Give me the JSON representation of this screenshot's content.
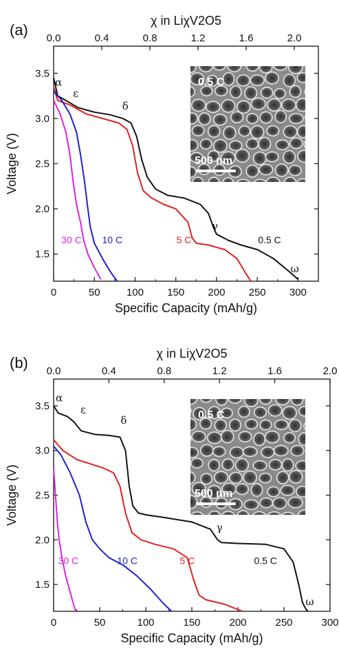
{
  "chart_data": [
    {
      "type": "line",
      "panel_label": "(a)",
      "xlabel": "Specific Capacity (mAh/g)",
      "ylabel": "Voltage (V)",
      "top_xlabel": "χ in LiχV2O5",
      "xlim": [
        0,
        325
      ],
      "ylim": [
        1.2,
        3.8
      ],
      "top_xlim": [
        0,
        2.2
      ],
      "x_ticks": [
        "0",
        "50",
        "100",
        "150",
        "200",
        "250",
        "300"
      ],
      "x_tick_values": [
        0,
        50,
        100,
        150,
        200,
        250,
        300
      ],
      "y_ticks": [
        "1.5",
        "2.0",
        "2.5",
        "3.0",
        "3.5"
      ],
      "y_tick_values": [
        1.5,
        2.0,
        2.5,
        3.0,
        3.5
      ],
      "top_ticks": [
        "0.0",
        "0.4",
        "0.8",
        "1.2",
        "1.6",
        "2.0"
      ],
      "top_tick_values": [
        0.0,
        0.4,
        0.8,
        1.2,
        1.6,
        2.0
      ],
      "series": [
        {
          "name": "0.5 C",
          "color": "#111111",
          "x": [
            0,
            5,
            15,
            30,
            50,
            70,
            85,
            95,
            102,
            108,
            115,
            125,
            140,
            160,
            180,
            190,
            196,
            200,
            215,
            230,
            250,
            270,
            290,
            300
          ],
          "y": [
            3.45,
            3.25,
            3.2,
            3.12,
            3.07,
            3.04,
            3.0,
            2.95,
            2.8,
            2.55,
            2.35,
            2.22,
            2.15,
            2.12,
            2.05,
            1.95,
            1.8,
            1.72,
            1.65,
            1.6,
            1.55,
            1.45,
            1.3,
            1.22
          ]
        },
        {
          "name": "5 C",
          "color": "#e02020",
          "x": [
            0,
            5,
            20,
            40,
            60,
            80,
            90,
            97,
            103,
            110,
            120,
            135,
            150,
            165,
            170,
            175,
            190,
            210,
            225,
            235,
            242
          ],
          "y": [
            3.35,
            3.2,
            3.15,
            3.05,
            3.0,
            2.95,
            2.88,
            2.7,
            2.4,
            2.2,
            2.12,
            2.05,
            2.0,
            1.85,
            1.68,
            1.62,
            1.6,
            1.55,
            1.45,
            1.3,
            1.2
          ]
        },
        {
          "name": "10 C",
          "color": "#2020d0",
          "x": [
            0,
            10,
            20,
            28,
            33,
            38,
            42,
            45,
            50,
            60,
            70,
            78
          ],
          "y": [
            3.3,
            3.2,
            3.05,
            2.85,
            2.6,
            2.3,
            2.0,
            1.8,
            1.62,
            1.45,
            1.3,
            1.2
          ]
        },
        {
          "name": "30 C",
          "color": "#e020e0",
          "x": [
            0,
            8,
            15,
            20,
            24,
            28,
            33,
            37,
            42,
            50,
            58
          ],
          "y": [
            3.2,
            3.05,
            2.85,
            2.6,
            2.3,
            2.05,
            1.85,
            1.65,
            1.5,
            1.35,
            1.22
          ]
        }
      ],
      "curve_labels": [
        {
          "text": "30 C",
          "color": "#e020e0",
          "x": 22,
          "y": 1.62
        },
        {
          "text": "10 C",
          "color": "#2020d0",
          "x": 72,
          "y": 1.62
        },
        {
          "text": "5 C",
          "color": "#e02020",
          "x": 160,
          "y": 1.62
        },
        {
          "text": "0.5 C",
          "color": "#111111",
          "x": 265,
          "y": 1.62
        }
      ],
      "greek_labels": [
        {
          "text": "α",
          "x": 6,
          "y": 3.36
        },
        {
          "text": "ε",
          "x": 27,
          "y": 3.24
        },
        {
          "text": "δ",
          "x": 88,
          "y": 3.1
        },
        {
          "text": "γ",
          "x": 198,
          "y": 1.77
        },
        {
          "text": "ω",
          "x": 296,
          "y": 1.3
        }
      ],
      "inset": {
        "rate_label": "0.5 C",
        "scale_label": "500 nm"
      }
    },
    {
      "type": "line",
      "panel_label": "(b)",
      "xlabel": "Specific Capacity (mAh/g)",
      "ylabel": "Voltage (V)",
      "top_xlabel": "χ in LiχV2O5",
      "xlim": [
        0,
        300
      ],
      "ylim": [
        1.2,
        3.8
      ],
      "top_xlim": [
        0,
        2.0
      ],
      "x_ticks": [
        "0",
        "50",
        "100",
        "150",
        "200",
        "250",
        "300"
      ],
      "x_tick_values": [
        0,
        50,
        100,
        150,
        200,
        250,
        300
      ],
      "y_ticks": [
        "1.5",
        "2.0",
        "2.5",
        "3.0",
        "3.5"
      ],
      "y_tick_values": [
        1.5,
        2.0,
        2.5,
        3.0,
        3.5
      ],
      "top_ticks": [
        "0.0",
        "0.4",
        "0.8",
        "1.2",
        "1.6",
        "2.0"
      ],
      "top_tick_values": [
        0.0,
        0.4,
        0.8,
        1.2,
        1.6,
        2.0
      ],
      "series": [
        {
          "name": "0.5 C",
          "color": "#111111",
          "x": [
            0,
            5,
            15,
            22,
            30,
            45,
            60,
            72,
            78,
            82,
            86,
            92,
            100,
            120,
            150,
            170,
            178,
            182,
            200,
            230,
            250,
            260,
            266,
            270,
            274,
            276
          ],
          "y": [
            3.5,
            3.42,
            3.38,
            3.32,
            3.22,
            3.18,
            3.17,
            3.15,
            3.0,
            2.6,
            2.38,
            2.3,
            2.28,
            2.25,
            2.2,
            2.12,
            2.0,
            1.97,
            1.96,
            1.95,
            1.9,
            1.75,
            1.5,
            1.3,
            1.22,
            1.2
          ]
        },
        {
          "name": "5 C",
          "color": "#e02020",
          "x": [
            0,
            10,
            25,
            40,
            55,
            65,
            72,
            78,
            85,
            95,
            110,
            130,
            145,
            152,
            158,
            165,
            185,
            205
          ],
          "y": [
            3.12,
            3.0,
            2.9,
            2.85,
            2.8,
            2.75,
            2.6,
            2.3,
            2.08,
            2.0,
            1.95,
            1.9,
            1.8,
            1.55,
            1.38,
            1.33,
            1.28,
            1.2
          ]
        },
        {
          "name": "10 C",
          "color": "#2020d0",
          "x": [
            0,
            8,
            18,
            28,
            35,
            42,
            50,
            60,
            75,
            90,
            105,
            118,
            128
          ],
          "y": [
            3.05,
            2.95,
            2.75,
            2.5,
            2.2,
            2.0,
            1.9,
            1.8,
            1.72,
            1.6,
            1.45,
            1.3,
            1.2
          ]
        },
        {
          "name": "30 C",
          "color": "#e020e0",
          "x": [
            0,
            2,
            4,
            6,
            9,
            13,
            17,
            21,
            24
          ],
          "y": [
            2.8,
            2.5,
            2.2,
            2.0,
            1.8,
            1.6,
            1.45,
            1.3,
            1.2
          ]
        }
      ],
      "curve_labels": [
        {
          "text": "30 C",
          "color": "#e020e0",
          "x": 16,
          "y": 1.73
        },
        {
          "text": "10 C",
          "color": "#2020d0",
          "x": 80,
          "y": 1.73
        },
        {
          "text": "5 C",
          "color": "#e02020",
          "x": 145,
          "y": 1.73
        },
        {
          "text": "0.5 C",
          "color": "#111111",
          "x": 230,
          "y": 1.73
        }
      ],
      "greek_labels": [
        {
          "text": "α",
          "x": 6,
          "y": 3.55
        },
        {
          "text": "ε",
          "x": 32,
          "y": 3.42
        },
        {
          "text": "δ",
          "x": 76,
          "y": 3.3
        },
        {
          "text": "γ",
          "x": 180,
          "y": 2.1
        },
        {
          "text": "ω",
          "x": 278,
          "y": 1.27
        }
      ],
      "inset": {
        "rate_label": "0.5 C",
        "scale_label": "500 nm"
      }
    }
  ]
}
